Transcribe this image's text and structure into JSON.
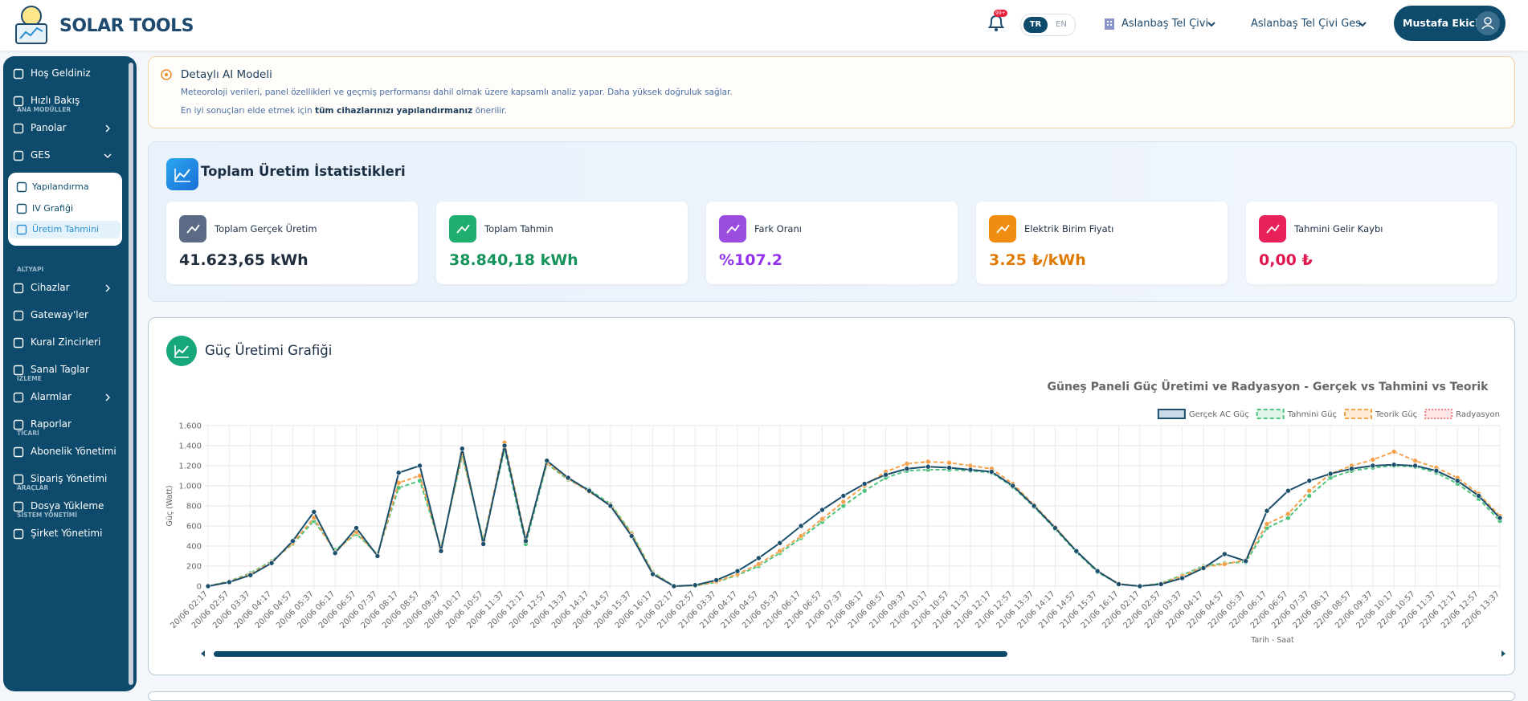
{
  "header": {
    "brand": "SOLAR TOOLS",
    "badge": "99+",
    "lang": [
      "TR",
      "EN"
    ],
    "company": "Aslanbaş Tel Çivi",
    "plant": "Aslanbaş Tel Çivi Ges",
    "user": "Mustafa Ekici"
  },
  "sidebar": {
    "sections": [
      {
        "items": [
          {
            "label": "Hoş Geldiniz"
          },
          {
            "label": "Hızlı Bakış"
          }
        ]
      },
      {
        "title": "ANA MODÜLLER",
        "items": [
          {
            "label": "Panolar"
          },
          {
            "label": "GES",
            "children": [
              "Yapılandırma",
              "IV Grafiği",
              "Üretim Tahmini"
            ]
          }
        ]
      },
      {
        "title": "ALTYAPI",
        "items": [
          {
            "label": "Cihazlar"
          },
          {
            "label": "Gateway'ler"
          },
          {
            "label": "Kural Zincirleri"
          },
          {
            "label": "Sanal Taglar"
          }
        ]
      },
      {
        "title": "İZLEME",
        "items": [
          {
            "label": "Alarmlar"
          },
          {
            "label": "Raporlar"
          }
        ]
      },
      {
        "title": "TİCARİ",
        "items": [
          {
            "label": "Abonelik Yönetimi"
          },
          {
            "label": "Sipariş Yönetimi"
          }
        ]
      },
      {
        "title": "ARAÇLAR",
        "items": [
          {
            "label": "Dosya Yükleme"
          }
        ]
      },
      {
        "title": "SİSTEM YÖNETİMİ",
        "items": [
          {
            "label": "Şirket Yönetimi"
          }
        ]
      }
    ]
  },
  "info": {
    "title": "Detaylı AI Modeli",
    "text": "Meteoroloji verileri, panel özellikleri ve geçmiş performansı dahil olmak üzere kapsamlı analiz yapar. Daha yüksek doğruluk sağlar.",
    "hint": [
      "En iyi sonuçları elde etmek için ",
      "tüm cihazlarınızı yapılandırmanız",
      " önerilir."
    ]
  },
  "stats": {
    "title": "Toplam Üretim İstatistikleri",
    "cards": [
      {
        "label": "Toplam Gerçek Üretim",
        "value": "41.623,65 kWh",
        "color": "#1f2d3d",
        "icon": "#5b6b86"
      },
      {
        "label": "Toplam Tahmin",
        "value": "38.840,18 kWh",
        "color": "#15935a",
        "icon": "#1fae6e"
      },
      {
        "label": "Fark Oranı",
        "value": "%107.2",
        "color": "#9333ea",
        "icon": "#9b4de0"
      },
      {
        "label": "Elektrik Birim Fiyatı",
        "value": "3.25 ₺/kWh",
        "color": "#df7a00",
        "icon": "#f08c10"
      },
      {
        "label": "Tahmini Gelir Kaybı",
        "value": "0,00 ₺",
        "color": "#e0174f",
        "icon": "#e8215a"
      }
    ]
  },
  "chart_card": {
    "title": "Güç Üretimi Grafiği"
  },
  "chart_data": {
    "type": "line",
    "title": "Güneş Paneli Güç Üretimi ve Radyasyon - Gerçek vs Tahmini vs Teorik",
    "y_label": "Güç (Watt)",
    "x_label": "Tarih - Saat",
    "legend": "top-right",
    "grid": true,
    "ylim": [
      0,
      1600
    ],
    "yticks": [
      0,
      200,
      400,
      600,
      800,
      {
        "value": 1000,
        "label": "1.000"
      },
      {
        "value": 1200,
        "label": "1.200"
      },
      {
        "value": 1400,
        "label": "1.400"
      },
      {
        "value": 1600,
        "label": "1.600"
      }
    ],
    "categories": [
      "20/06 02:17",
      "20/06 02:57",
      "20/06 03:37",
      "20/06 04:17",
      "20/06 04:57",
      "20/06 05:37",
      "20/06 06:17",
      "20/06 06:57",
      "20/06 07:37",
      "20/06 08:17",
      "20/06 08:57",
      "20/06 09:37",
      "20/06 10:17",
      "20/06 10:57",
      "20/06 11:37",
      "20/06 12:17",
      "20/06 12:57",
      "20/06 13:37",
      "20/06 14:17",
      "20/06 14:57",
      "20/06 15:37",
      "20/06 16:17",
      "21/06 02:17",
      "21/06 02:57",
      "21/06 03:37",
      "21/06 04:17",
      "21/06 04:57",
      "21/06 05:37",
      "21/06 06:17",
      "21/06 06:57",
      "21/06 07:37",
      "21/06 08:17",
      "21/06 08:57",
      "21/06 09:37",
      "21/06 10:17",
      "21/06 10:57",
      "21/06 11:37",
      "21/06 12:17",
      "21/06 12:57",
      "21/06 13:37",
      "21/06 14:17",
      "21/06 14:57",
      "21/06 15:37",
      "21/06 16:17",
      "22/06 02:17",
      "22/06 02:57",
      "22/06 03:37",
      "22/06 04:17",
      "22/06 04:57",
      "22/06 05:37",
      "22/06 06:17",
      "22/06 06:57",
      "22/06 07:37",
      "22/06 08:17",
      "22/06 08:57",
      "22/06 09:37",
      "22/06 10:17",
      "22/06 10:57",
      "22/06 11:37",
      "22/06 12:17",
      "22/06 12:57",
      "22/06 13:37"
    ],
    "series": [
      {
        "name": "Gerçek AC Güç",
        "color": "#1b4f6b",
        "fill": "#c9dbe6",
        "dash": "solid",
        "values": [
          0,
          40,
          110,
          230,
          450,
          740,
          330,
          580,
          300,
          1130,
          1200,
          350,
          1370,
          420,
          1400,
          450,
          1250,
          1080,
          950,
          800,
          500,
          120,
          0,
          10,
          60,
          150,
          280,
          430,
          600,
          760,
          900,
          1020,
          1110,
          1170,
          1190,
          1180,
          1160,
          1140,
          1000,
          800,
          580,
          350,
          150,
          20,
          0,
          20,
          80,
          180,
          320,
          250,
          750,
          950,
          1050,
          1120,
          1170,
          1200,
          1210,
          1200,
          1150,
          1050,
          900,
          680
        ]
      },
      {
        "name": "Tahmini Güç",
        "color": "#4fc47f",
        "fill": "#dff5e7",
        "dash": "dashed",
        "values": [
          0,
          50,
          130,
          250,
          420,
          650,
          360,
          520,
          320,
          980,
          1050,
          380,
          1300,
          460,
          1360,
          420,
          1220,
          1060,
          960,
          820,
          530,
          140,
          0,
          5,
          40,
          110,
          200,
          330,
          480,
          640,
          800,
          950,
          1080,
          1150,
          1160,
          1160,
          1150,
          1130,
          990,
          790,
          570,
          340,
          140,
          20,
          0,
          30,
          110,
          200,
          230,
          240,
          580,
          680,
          900,
          1080,
          1150,
          1180,
          1200,
          1190,
          1130,
          1020,
          870,
          650
        ]
      },
      {
        "name": "Teorik Güç",
        "color": "#f5a04a",
        "fill": "#fdebd6",
        "dash": "dashed",
        "values": [
          0,
          45,
          120,
          240,
          430,
          680,
          340,
          540,
          310,
          1030,
          1100,
          370,
          1320,
          440,
          1430,
          470,
          1230,
          1070,
          940,
          810,
          520,
          130,
          0,
          5,
          45,
          120,
          220,
          350,
          500,
          670,
          840,
          1000,
          1140,
          1220,
          1240,
          1230,
          1200,
          1170,
          1020,
          810,
          590,
          350,
          150,
          25,
          0,
          25,
          100,
          190,
          220,
          260,
          620,
          720,
          950,
          1120,
          1200,
          1260,
          1340,
          1250,
          1180,
          1080,
          920,
          700
        ]
      },
      {
        "name": "Radyasyon",
        "color": "#f08080",
        "fill": "#fde6e6",
        "dash": "dotted",
        "values": [
          null,
          null,
          null,
          null,
          null,
          null,
          null,
          null,
          null,
          null,
          null,
          null,
          null,
          null,
          null,
          null,
          null,
          null,
          null,
          null,
          null,
          null,
          null,
          null,
          null,
          null,
          null,
          null,
          null,
          null,
          null,
          null,
          null,
          null,
          null,
          null,
          null,
          null,
          null,
          null,
          null,
          null,
          null,
          null,
          null,
          null,
          null,
          null,
          null,
          null,
          null,
          null,
          null,
          null,
          null,
          null,
          null,
          null,
          null,
          null,
          null,
          null
        ]
      }
    ]
  }
}
